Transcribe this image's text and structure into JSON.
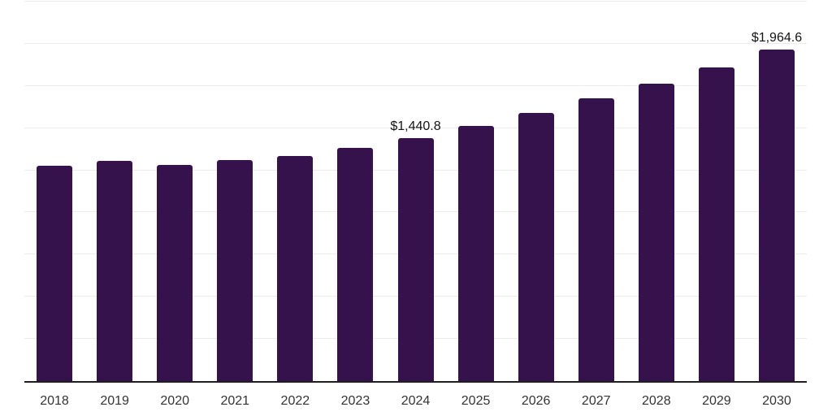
{
  "chart_data": {
    "type": "bar",
    "title": "",
    "xlabel": "",
    "ylabel": "",
    "categories": [
      "2018",
      "2019",
      "2020",
      "2021",
      "2022",
      "2023",
      "2024",
      "2025",
      "2026",
      "2027",
      "2028",
      "2029",
      "2030"
    ],
    "values": [
      1278,
      1306,
      1284,
      1312,
      1336,
      1384,
      1440.8,
      1515,
      1592,
      1678,
      1765,
      1862,
      1964.6
    ],
    "point_labels": [
      "",
      "",
      "",
      "",
      "",
      "",
      "$1,440.8",
      "",
      "",
      "",
      "",
      "",
      "$1,964.6"
    ],
    "ylim": [
      0,
      2250
    ],
    "gridline_step": 250,
    "grid": true,
    "legend": "none",
    "y_axis_tick_labels_visible": false,
    "colors": {
      "bar": "#36124d",
      "axis_line": "#1f1f1f",
      "gridline": "#ececec",
      "x_tick_label": "#333333",
      "value_label": "#141414",
      "background": "#ffffff"
    }
  }
}
